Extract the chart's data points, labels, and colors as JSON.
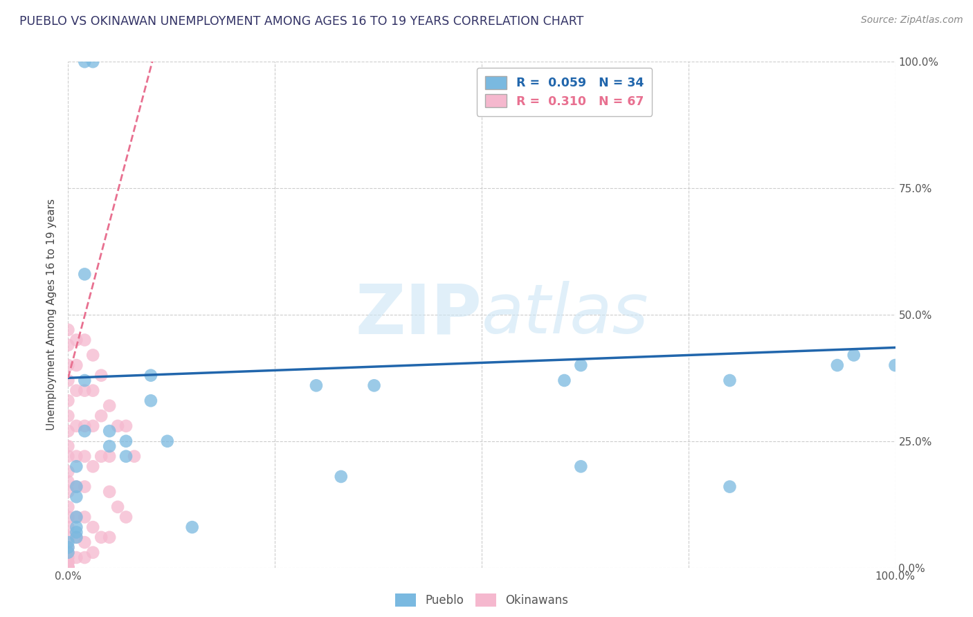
{
  "title": "PUEBLO VS OKINAWAN UNEMPLOYMENT AMONG AGES 16 TO 19 YEARS CORRELATION CHART",
  "source": "Source: ZipAtlas.com",
  "ylabel": "Unemployment Among Ages 16 to 19 years",
  "xlim": [
    0.0,
    1.0
  ],
  "ylim": [
    0.0,
    1.0
  ],
  "xticks": [
    0.0,
    0.25,
    0.5,
    0.75,
    1.0
  ],
  "yticks": [
    0.0,
    0.25,
    0.5,
    0.75,
    1.0
  ],
  "xticklabels": [
    "0.0%",
    "",
    "",
    "",
    "100.0%"
  ],
  "yticklabels_right": [
    "0.0%",
    "25.0%",
    "50.0%",
    "75.0%",
    "100.0%"
  ],
  "pueblo_color": "#7ab9e0",
  "okinawan_color": "#f5b8ce",
  "trend_pueblo_color": "#2166ac",
  "trend_okinawan_color": "#e87090",
  "R_pueblo": 0.059,
  "N_pueblo": 34,
  "R_okinawan": 0.31,
  "N_okinawan": 67,
  "watermark_zip": "ZIP",
  "watermark_atlas": "atlas",
  "background_color": "#ffffff",
  "grid_color": "#cccccc",
  "title_color": "#444488",
  "pueblo_points_x": [
    0.02,
    0.03,
    0.02,
    0.02,
    0.02,
    0.01,
    0.01,
    0.01,
    0.01,
    0.01,
    0.01,
    0.01,
    0.0,
    0.0,
    0.0,
    0.05,
    0.05,
    0.07,
    0.07,
    0.1,
    0.1,
    0.12,
    0.15,
    0.3,
    0.33,
    0.37,
    0.6,
    0.62,
    0.62,
    0.8,
    0.8,
    0.93,
    0.95,
    1.0
  ],
  "pueblo_points_y": [
    1.0,
    1.0,
    0.58,
    0.37,
    0.27,
    0.2,
    0.16,
    0.14,
    0.1,
    0.08,
    0.07,
    0.06,
    0.05,
    0.04,
    0.03,
    0.27,
    0.24,
    0.25,
    0.22,
    0.38,
    0.33,
    0.25,
    0.08,
    0.36,
    0.18,
    0.36,
    0.37,
    0.4,
    0.2,
    0.37,
    0.16,
    0.4,
    0.42,
    0.4
  ],
  "okinawan_points_x": [
    0.0,
    0.0,
    0.0,
    0.0,
    0.0,
    0.0,
    0.0,
    0.0,
    0.0,
    0.0,
    0.0,
    0.0,
    0.0,
    0.0,
    0.0,
    0.0,
    0.0,
    0.0,
    0.0,
    0.0,
    0.0,
    0.0,
    0.0,
    0.0,
    0.0,
    0.0,
    0.0,
    0.0,
    0.0,
    0.0,
    0.0,
    0.01,
    0.01,
    0.01,
    0.01,
    0.01,
    0.01,
    0.01,
    0.01,
    0.01,
    0.02,
    0.02,
    0.02,
    0.02,
    0.02,
    0.02,
    0.02,
    0.02,
    0.03,
    0.03,
    0.03,
    0.03,
    0.03,
    0.03,
    0.04,
    0.04,
    0.04,
    0.04,
    0.05,
    0.05,
    0.05,
    0.05,
    0.06,
    0.06,
    0.07,
    0.07,
    0.08
  ],
  "okinawan_points_y": [
    0.47,
    0.44,
    0.4,
    0.37,
    0.33,
    0.3,
    0.27,
    0.24,
    0.22,
    0.19,
    0.17,
    0.15,
    0.12,
    0.1,
    0.08,
    0.06,
    0.04,
    0.03,
    0.02,
    0.01,
    0.01,
    0.0,
    0.0,
    0.0,
    0.0,
    0.0,
    0.0,
    0.0,
    0.0,
    0.0,
    0.0,
    0.45,
    0.4,
    0.35,
    0.28,
    0.22,
    0.16,
    0.1,
    0.06,
    0.02,
    0.45,
    0.35,
    0.28,
    0.22,
    0.16,
    0.1,
    0.05,
    0.02,
    0.42,
    0.35,
    0.28,
    0.2,
    0.08,
    0.03,
    0.38,
    0.3,
    0.22,
    0.06,
    0.32,
    0.22,
    0.15,
    0.06,
    0.28,
    0.12,
    0.28,
    0.1,
    0.22
  ],
  "pueblo_trend_x": [
    0.0,
    1.0
  ],
  "pueblo_trend_y": [
    0.375,
    0.435
  ],
  "okinawan_trend_x": [
    0.0,
    0.105
  ],
  "okinawan_trend_y": [
    0.375,
    1.02
  ]
}
